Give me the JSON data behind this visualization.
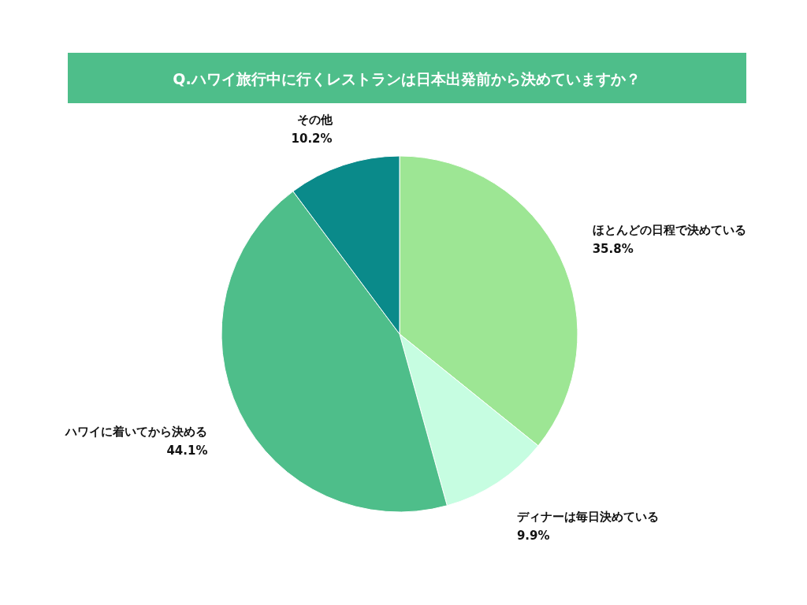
{
  "chart_data": {
    "type": "pie",
    "title": "Q.ハワイ旅行中に行くレストランは日本出発前から決めていますか？",
    "categories": [
      "ほとんどの日程で決めている",
      "ディナーは毎日決めている",
      "ハワイに着いてから決める",
      "その他"
    ],
    "values": [
      35.8,
      9.9,
      44.1,
      10.2
    ],
    "colors": [
      "#9de694",
      "#c6fde1",
      "#4ebe8a",
      "#0a8a8a"
    ],
    "value_labels": [
      "35.8%",
      "9.9%",
      "44.1%",
      "10.2%"
    ]
  }
}
